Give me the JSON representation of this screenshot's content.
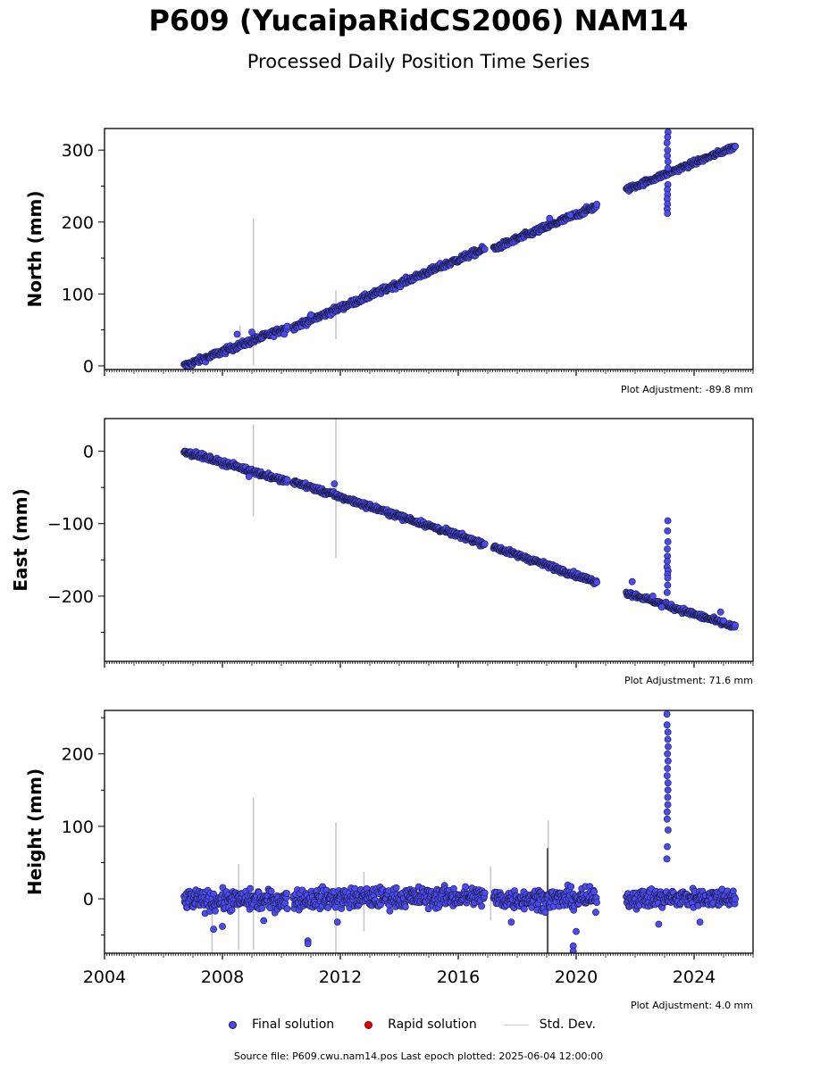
{
  "title": "P609 (YucaipaRidCS2006) NAM14",
  "subtitle": "Processed Daily Position Time Series",
  "legend": {
    "final_label": "Final solution",
    "rapid_label": "Rapid solution",
    "std_label": "Std. Dev."
  },
  "source_text": "Source file: P609.cwu.nam14.pos  Last epoch plotted: 2025-06-04 12:00:00",
  "colors": {
    "final": "#4b4bf0",
    "final_edge": "#1a1a40",
    "rapid": "#e00000",
    "stddev": "#c8c8c8"
  },
  "chart_data": [
    {
      "type": "scatter",
      "ylabel": "North (mm)",
      "adjustment": "Plot Adjustment: -89.8 mm",
      "xlim": [
        2004.0,
        2026.0
      ],
      "ylim": [
        -5,
        330
      ],
      "yticks": [
        0,
        100,
        200,
        300
      ],
      "xticks": [
        2004,
        2008,
        2012,
        2016,
        2020,
        2024
      ],
      "show_xticklabels": false,
      "segments": [
        {
          "x0": 2006.7,
          "y0": 0,
          "x1": 2010.2,
          "y1": 53,
          "noise": 3
        },
        {
          "x0": 2010.4,
          "y0": 54,
          "x1": 2016.9,
          "y1": 163,
          "noise": 3
        },
        {
          "x0": 2017.2,
          "y0": 163,
          "x1": 2020.7,
          "y1": 222,
          "noise": 3
        },
        {
          "x0": 2021.7,
          "y0": 245,
          "x1": 2025.4,
          "y1": 305,
          "noise": 2.5
        }
      ],
      "spikes": [
        {
          "x": 2023.1,
          "values": [
            325,
            318,
            310,
            300,
            292,
            284,
            275,
            252,
            245,
            238,
            232,
            225,
            218,
            212
          ]
        }
      ],
      "outliers": [
        {
          "x": 2008.5,
          "y": 44
        },
        {
          "x": 2009.0,
          "y": 47
        },
        {
          "x": 2010.1,
          "y": 44
        },
        {
          "x": 2011.0,
          "y": 71
        },
        {
          "x": 2019.1,
          "y": 205
        },
        {
          "x": 2019.8,
          "y": 210
        }
      ],
      "stddev_bars": [
        {
          "x": 2009.05,
          "low": 0,
          "high": 205
        },
        {
          "x": 2011.85,
          "low": 37,
          "high": 105
        },
        {
          "x": 2008.6,
          "low": 30,
          "high": 56
        }
      ]
    },
    {
      "type": "scatter",
      "ylabel": "East (mm)",
      "adjustment": "Plot Adjustment: 71.6 mm",
      "xlim": [
        2004.0,
        2026.0
      ],
      "ylim": [
        -290,
        45
      ],
      "yticks": [
        0,
        -100,
        -200
      ],
      "xticks": [
        2004,
        2008,
        2012,
        2016,
        2020,
        2024
      ],
      "show_xticklabels": false,
      "segments": [
        {
          "x0": 2006.7,
          "y0": 0,
          "x1": 2010.2,
          "y1": -42,
          "noise": 2.5
        },
        {
          "x0": 2010.4,
          "y0": -42,
          "x1": 2016.9,
          "y1": -128,
          "noise": 2.5
        },
        {
          "x0": 2017.2,
          "y0": -132,
          "x1": 2020.7,
          "y1": -181,
          "noise": 2.5
        },
        {
          "x0": 2021.7,
          "y0": -195,
          "x1": 2025.4,
          "y1": -243,
          "noise": 2.5
        }
      ],
      "spikes": [
        {
          "x": 2023.1,
          "values": [
            -96,
            -110,
            -125,
            -135,
            -145,
            -152,
            -160,
            -165,
            -170,
            -175,
            -185,
            -195
          ]
        }
      ],
      "outliers": [
        {
          "x": 2008.9,
          "y": -35
        },
        {
          "x": 2011.8,
          "y": -45
        },
        {
          "x": 2021.9,
          "y": -180
        },
        {
          "x": 2022.6,
          "y": -200
        },
        {
          "x": 2022.9,
          "y": -215
        },
        {
          "x": 2024.9,
          "y": -222
        },
        {
          "x": 2025.0,
          "y": -234
        }
      ],
      "stddev_bars": [
        {
          "x": 2009.05,
          "low": -90,
          "high": 37
        },
        {
          "x": 2011.85,
          "low": -147,
          "high": 45
        }
      ]
    },
    {
      "type": "scatter",
      "ylabel": "Height (mm)",
      "adjustment": "Plot Adjustment: 4.0 mm",
      "xlim": [
        2004.0,
        2026.0
      ],
      "ylim": [
        -75,
        260
      ],
      "yticks": [
        0,
        100,
        200
      ],
      "xticks": [
        2004,
        2008,
        2012,
        2016,
        2020,
        2024
      ],
      "xticklabels": [
        "2004",
        "2008",
        "2012",
        "2016",
        "2020",
        "2024"
      ],
      "show_xticklabels": true,
      "segments": [
        {
          "x0": 2006.7,
          "y0": -2,
          "x1": 2010.2,
          "y1": -2,
          "noise": 10
        },
        {
          "x0": 2010.4,
          "y0": 0,
          "x1": 2016.9,
          "y1": 3,
          "noise": 10
        },
        {
          "x0": 2017.2,
          "y0": 0,
          "x1": 2020.7,
          "y1": 0,
          "noise": 10
        },
        {
          "x0": 2021.7,
          "y0": 0,
          "x1": 2025.4,
          "y1": 2,
          "noise": 9
        }
      ],
      "spikes": [
        {
          "x": 2023.1,
          "values": [
            255,
            240,
            230,
            220,
            210,
            200,
            190,
            180,
            170,
            160,
            150,
            140,
            130,
            120,
            110,
            95,
            72,
            55
          ]
        }
      ],
      "outliers": [
        {
          "x": 2007.7,
          "y": -42
        },
        {
          "x": 2008.0,
          "y": -38
        },
        {
          "x": 2009.4,
          "y": -30
        },
        {
          "x": 2010.9,
          "y": -58
        },
        {
          "x": 2010.9,
          "y": -62
        },
        {
          "x": 2011.9,
          "y": -32
        },
        {
          "x": 2017.8,
          "y": -32
        },
        {
          "x": 2019.9,
          "y": -65
        },
        {
          "x": 2019.9,
          "y": -72
        },
        {
          "x": 2020.0,
          "y": -45
        },
        {
          "x": 2022.8,
          "y": -35
        },
        {
          "x": 2024.2,
          "y": -32
        }
      ],
      "stddev_bars": [
        {
          "x": 2007.65,
          "low": -75,
          "high": 0
        },
        {
          "x": 2008.55,
          "low": -70,
          "high": 48
        },
        {
          "x": 2009.05,
          "low": -70,
          "high": 140
        },
        {
          "x": 2011.85,
          "low": -75,
          "high": 105
        },
        {
          "x": 2012.8,
          "low": -45,
          "high": 37
        },
        {
          "x": 2017.1,
          "low": -30,
          "high": 45
        },
        {
          "x": 2019.05,
          "low": -75,
          "high": 108
        }
      ],
      "dark_bars": [
        {
          "x": 2019.03,
          "low": -75,
          "high": 70
        }
      ]
    }
  ]
}
